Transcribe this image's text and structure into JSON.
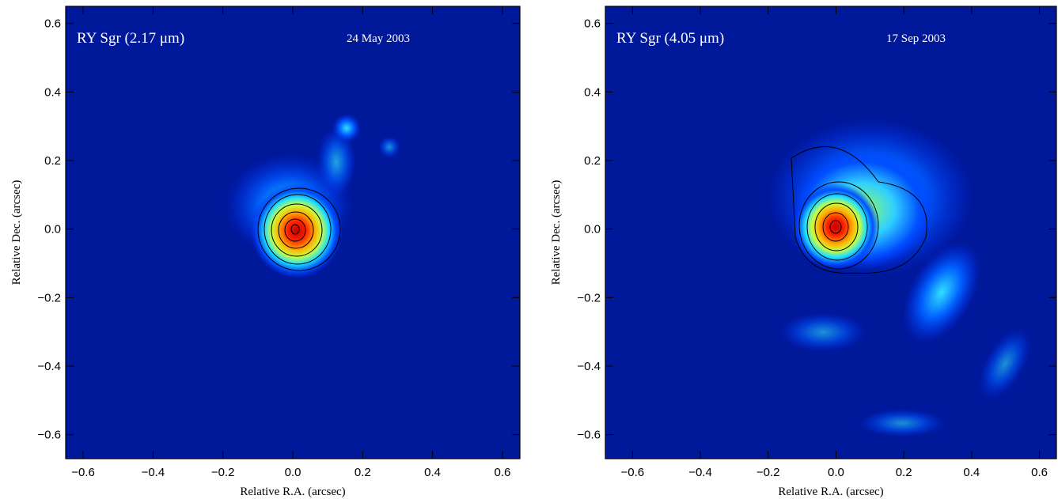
{
  "chart_data": [
    {
      "type": "image",
      "title": "RY Sgr (2.17 μm)",
      "subtitle": "24 May 2003",
      "xlabel": "Relative R.A. (arcsec)",
      "ylabel": "Relative Dec. (arcsec)",
      "xlim": [
        -0.65,
        0.65
      ],
      "ylim": [
        -0.67,
        0.65
      ],
      "xticks": [
        {
          "value": -0.6,
          "label": "−0.6"
        },
        {
          "value": -0.4,
          "label": "−0.4"
        },
        {
          "value": -0.2,
          "label": "−0.2"
        },
        {
          "value": 0,
          "label": "0.0"
        },
        0.2,
        0.4,
        0.6
      ],
      "yticks": [
        {
          "value": -0.6,
          "label": "−0.6"
        },
        {
          "value": -0.4,
          "label": "−0.4"
        },
        {
          "value": -0.2,
          "label": "−0.2"
        },
        {
          "value": 0,
          "label": "0.0"
        },
        0.2,
        0.4,
        0.6
      ]
    },
    {
      "type": "image",
      "title": "RY Sgr (4.05 μm)",
      "subtitle": "17 Sep 2003",
      "xlabel": "Relative R.A. (arcsec)",
      "ylabel": "Relative Dec. (arcsec)",
      "xlim": [
        -0.68,
        0.65
      ],
      "ylim": [
        -0.67,
        0.65
      ],
      "xticks": [
        {
          "value": -0.6,
          "label": "−0.6"
        },
        {
          "value": -0.4,
          "label": "−0.4"
        },
        {
          "value": -0.2,
          "label": "−0.2"
        },
        {
          "value": 0,
          "label": "0.0"
        },
        0.2,
        0.4,
        0.6
      ],
      "yticks": [
        {
          "value": -0.6,
          "label": "−0.6"
        },
        {
          "value": -0.4,
          "label": "−0.4"
        },
        {
          "value": -0.2,
          "label": "−0.2"
        },
        {
          "value": 0,
          "label": "0.0"
        },
        0.2,
        0.4,
        0.6
      ]
    }
  ]
}
